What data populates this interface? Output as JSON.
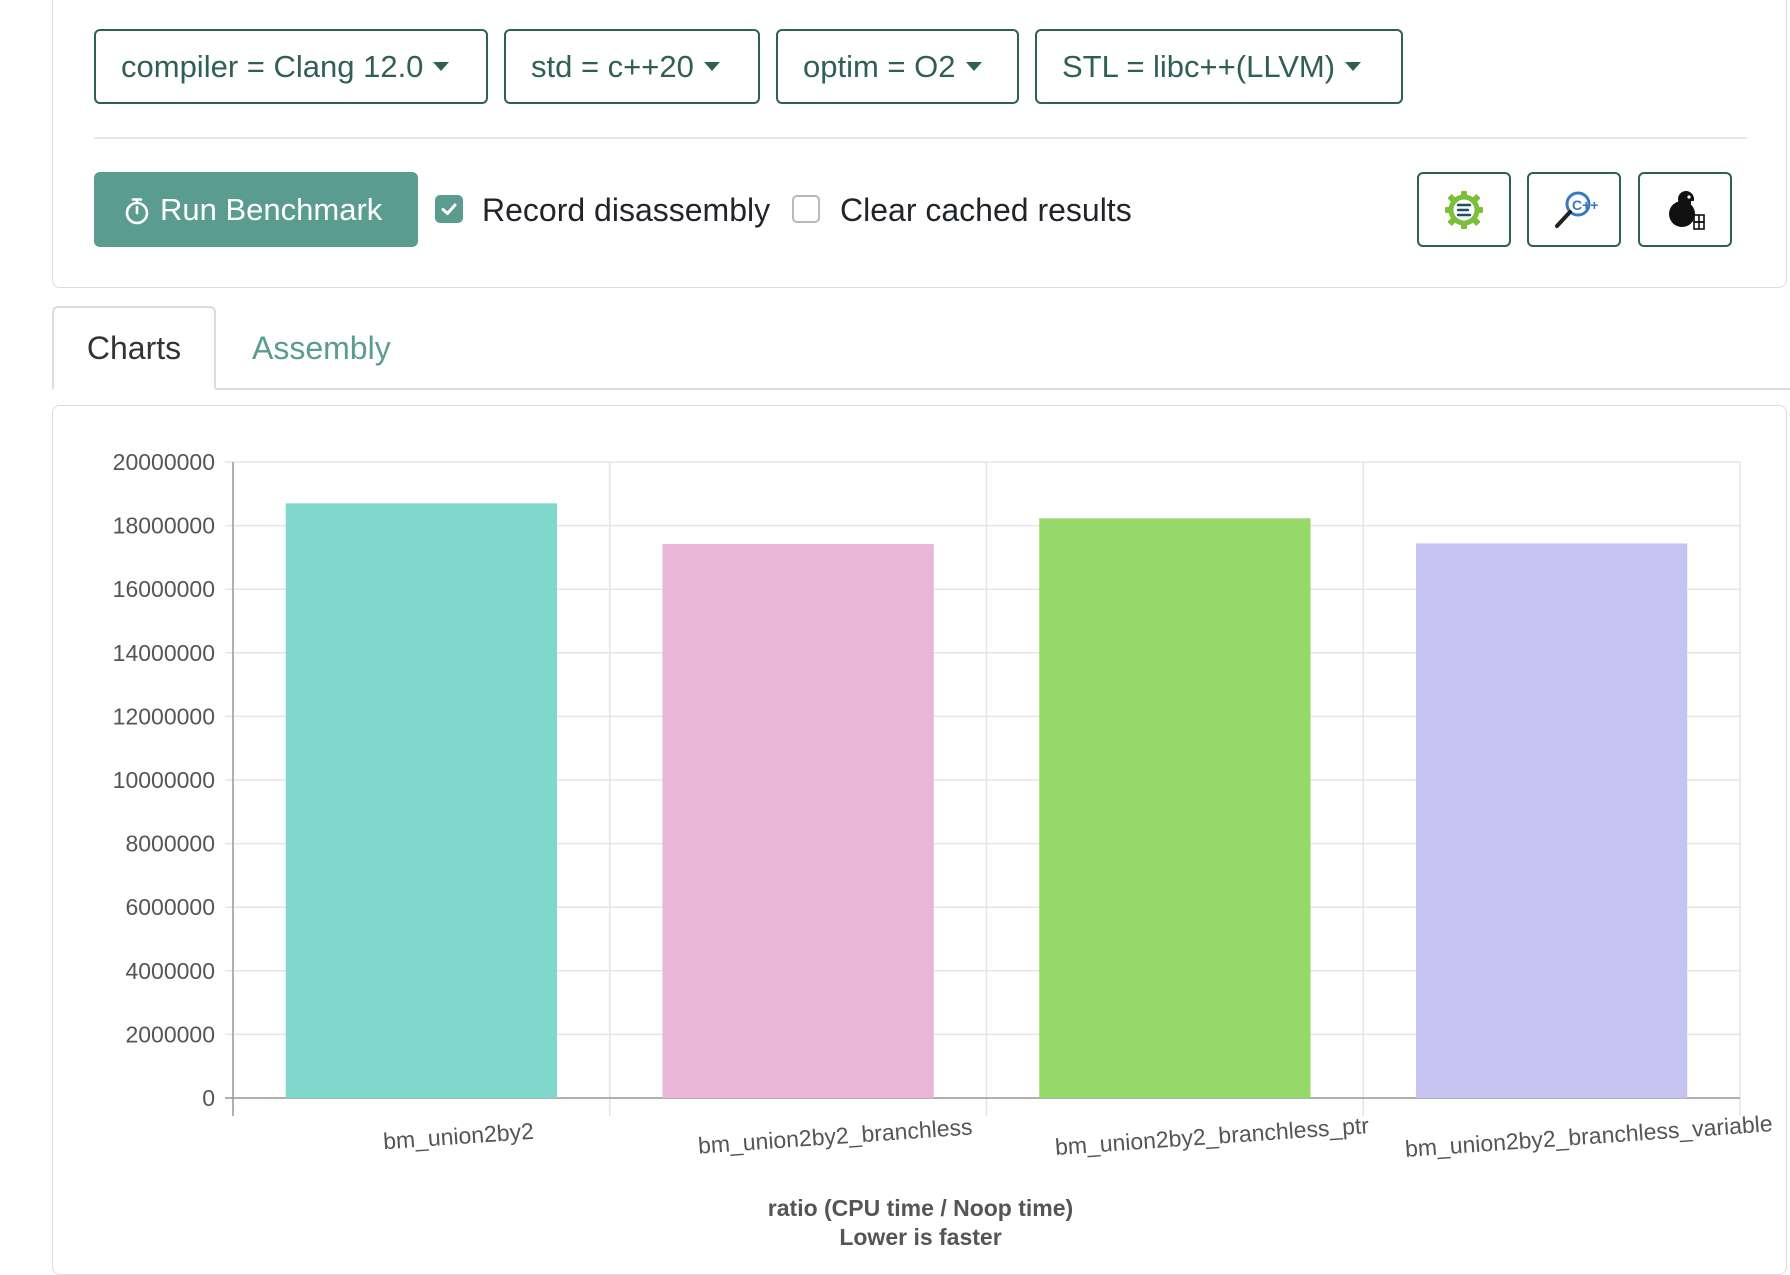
{
  "toolbar": {
    "dropdowns": [
      {
        "label": "compiler = Clang 12.0"
      },
      {
        "label": "std = c++20"
      },
      {
        "label": "optim = O2"
      },
      {
        "label": "STL = libc++(LLVM)"
      }
    ],
    "run_button": {
      "label": "Run Benchmark",
      "icon": "stopwatch-icon"
    },
    "record_disassembly": {
      "label": "Record disassembly",
      "checked": true
    },
    "clear_cache": {
      "label": "Clear cached results",
      "checked": false
    },
    "icon_buttons": [
      {
        "icon": "gear-lines-icon",
        "color": "#7bbf3a"
      },
      {
        "icon": "magnifier-plus-icon",
        "color": "#3a78c2"
      },
      {
        "icon": "beaver-icon",
        "color": "#000000"
      }
    ]
  },
  "tabs": [
    {
      "label": "Charts",
      "active": true
    },
    {
      "label": "Assembly",
      "active": false
    }
  ],
  "colors": {
    "accent": "#5a9c8f",
    "border_dark": "#2f5f55"
  },
  "chart_data": {
    "type": "bar",
    "categories": [
      "bm_union2by2",
      "bm_union2by2_branchless",
      "bm_union2by2_branchless_ptr",
      "bm_union2by2_branchless_variable"
    ],
    "values": [
      18700000,
      17420000,
      18230000,
      17440000
    ],
    "colors": [
      "#80d7cc",
      "#eab6d7",
      "#96d96b",
      "#c6c3f1"
    ],
    "ylim": [
      0,
      20000000
    ],
    "yticks": [
      "20000000",
      "18000000",
      "16000000",
      "14000000",
      "12000000",
      "10000000",
      "8000000",
      "6000000",
      "4000000",
      "2000000",
      "0"
    ],
    "xlabel_line1": "ratio (CPU time / Noop time)",
    "xlabel_line2": "Lower is faster",
    "grid": true,
    "legend": "none"
  }
}
